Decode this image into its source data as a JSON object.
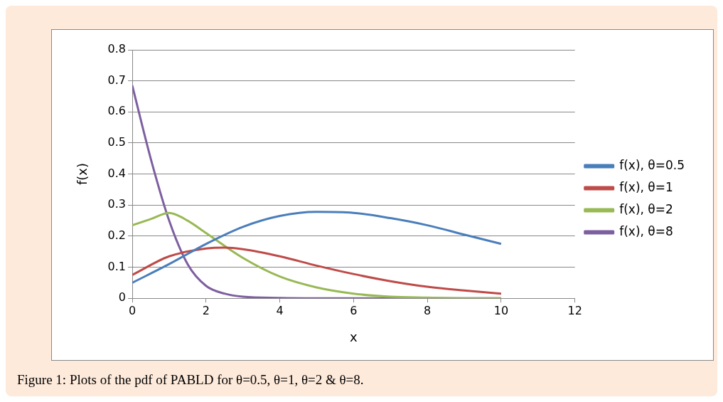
{
  "chart_data": {
    "type": "line",
    "xlabel": "x",
    "ylabel": "f(x)",
    "xlim": [
      0,
      12
    ],
    "xticks": [
      0,
      2,
      4,
      6,
      8,
      10,
      12
    ],
    "ylim": [
      0,
      0.8
    ],
    "yticks": [
      0,
      0.1,
      0.2,
      0.3,
      0.4,
      0.5,
      0.6,
      0.7,
      0.8
    ],
    "grid": "y",
    "legend": "right",
    "marker": "none",
    "line_style": "solid",
    "annotations": [
      "Figure 1: Plots of the pdf of PABLD for  θ=0.5,  θ=1,  θ=2 & θ=8."
    ],
    "series": [
      {
        "name": "f(x), θ=0.5",
        "color": "#4a7ebb",
        "x": [
          0,
          1,
          2,
          3,
          4,
          5,
          6,
          7,
          8,
          9,
          10
        ],
        "values": [
          0.05,
          0.11,
          0.175,
          0.23,
          0.265,
          0.278,
          0.275,
          0.258,
          0.235,
          0.205,
          0.175
        ]
      },
      {
        "name": "f(x), θ=1",
        "color": "#be4b48",
        "x": [
          0,
          1,
          2,
          2.5,
          3,
          4,
          5,
          6,
          7,
          8,
          9,
          10
        ],
        "values": [
          0.075,
          0.135,
          0.16,
          0.163,
          0.158,
          0.135,
          0.105,
          0.078,
          0.055,
          0.037,
          0.025,
          0.015
        ]
      },
      {
        "name": "f(x), θ=2",
        "color": "#98b954",
        "x": [
          0,
          0.5,
          1,
          1.5,
          2,
          3,
          4,
          5,
          6,
          7,
          8,
          9,
          10
        ],
        "values": [
          0.235,
          0.255,
          0.275,
          0.25,
          0.21,
          0.13,
          0.07,
          0.035,
          0.015,
          0.005,
          0.002,
          0,
          0
        ]
      },
      {
        "name": "f(x), θ=8",
        "color": "#7d5fa0",
        "x": [
          0,
          0.5,
          1,
          1.5,
          2,
          2.5,
          3,
          4,
          5,
          6,
          7,
          8,
          9,
          10
        ],
        "values": [
          0.685,
          0.45,
          0.25,
          0.11,
          0.04,
          0.015,
          0.005,
          0.001,
          0,
          0,
          0,
          0,
          0,
          0
        ]
      }
    ]
  }
}
